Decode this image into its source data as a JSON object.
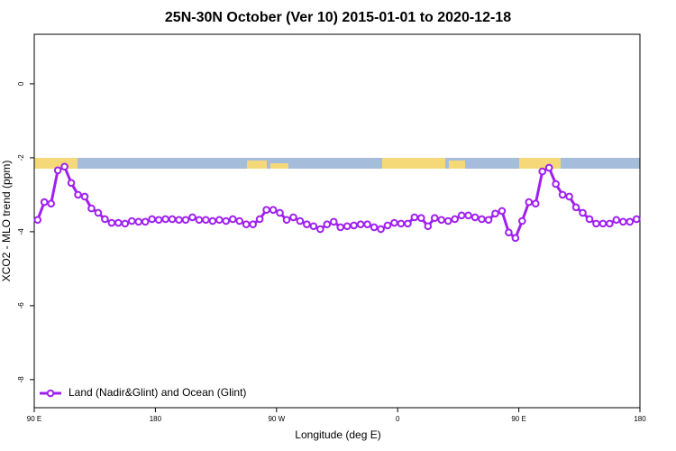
{
  "chart_data": {
    "type": "line",
    "title": "25N-30N October (Ver 10)   2015-01-01 to 2020-12-18",
    "x_label": "Longitude (deg E)",
    "y_label": "XCO2 - MLO trend (ppm)",
    "x": [
      92.5,
      97.5,
      102.5,
      107.5,
      112.5,
      117.5,
      122.5,
      127.5,
      132.5,
      137.5,
      142.5,
      147.5,
      152.5,
      157.5,
      162.5,
      167.5,
      172.5,
      177.5,
      182.5,
      187.5,
      192.5,
      197.5,
      202.5,
      207.5,
      212.5,
      217.5,
      222.5,
      227.5,
      232.5,
      237.5,
      242.5,
      247.5,
      252.5,
      257.5,
      262.5,
      267.5,
      272.5,
      277.5,
      282.5,
      287.5,
      292.5,
      297.5,
      302.5,
      307.5,
      312.5,
      317.5,
      322.5,
      327.5,
      332.5,
      337.5,
      342.5,
      347.5,
      352.5,
      357.5,
      362.5,
      367.5,
      372.5,
      377.5,
      382.5,
      387.5,
      392.5,
      397.5,
      402.5,
      407.5,
      412.5,
      417.5,
      422.5,
      427.5,
      432.5,
      437.5,
      442.5,
      447.5,
      452.5,
      457.5,
      462.5,
      467.5,
      472.5,
      477.5,
      482.5,
      487.5,
      492.5,
      497.5,
      502.5,
      507.5,
      512.5,
      517.5,
      522.5,
      527.5,
      532.5,
      537.5
    ],
    "series": [
      {
        "name": "Land (Nadir&Glint) and Ocean (Glint)",
        "color": "#a020f0",
        "values": [
          -3.68,
          -3.2,
          -3.24,
          -2.34,
          -2.24,
          -2.68,
          -3.0,
          -3.05,
          -3.37,
          -3.49,
          -3.66,
          -3.76,
          -3.76,
          -3.78,
          -3.71,
          -3.73,
          -3.73,
          -3.66,
          -3.68,
          -3.66,
          -3.66,
          -3.68,
          -3.68,
          -3.61,
          -3.68,
          -3.68,
          -3.71,
          -3.68,
          -3.71,
          -3.66,
          -3.71,
          -3.8,
          -3.8,
          -3.66,
          -3.41,
          -3.41,
          -3.49,
          -3.68,
          -3.61,
          -3.71,
          -3.8,
          -3.85,
          -3.93,
          -3.8,
          -3.73,
          -3.88,
          -3.85,
          -3.83,
          -3.8,
          -3.8,
          -3.88,
          -3.93,
          -3.83,
          -3.76,
          -3.78,
          -3.78,
          -3.61,
          -3.63,
          -3.85,
          -3.63,
          -3.68,
          -3.71,
          -3.66,
          -3.56,
          -3.56,
          -3.61,
          -3.66,
          -3.68,
          -3.51,
          -3.44,
          -4.02,
          -4.17,
          -3.71,
          -3.2,
          -3.24,
          -2.37,
          -2.27,
          -2.71,
          -3.0,
          -3.05,
          -3.34,
          -3.49,
          -3.66,
          -3.78,
          -3.78,
          -3.78,
          -3.68,
          -3.73,
          -3.73,
          -3.66
        ]
      }
    ],
    "xlim": [
      90,
      540
    ],
    "xticks": [
      {
        "value": 90,
        "label": "90 E"
      },
      180,
      {
        "value": 270,
        "label": "90 W"
      },
      {
        "value": 360,
        "label": "0"
      },
      {
        "value": 450,
        "label": "90 E"
      },
      {
        "value": 540,
        "label": "180"
      }
    ],
    "ylim": [
      -8.76,
      1.34
    ],
    "yticks": [
      0,
      -2,
      -4,
      -6,
      -8
    ],
    "legend": "bottom-left"
  }
}
